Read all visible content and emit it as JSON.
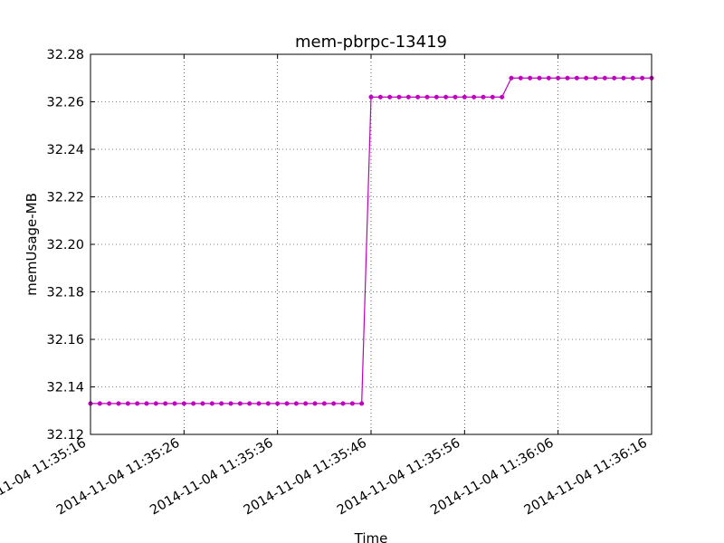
{
  "chart_data": {
    "type": "line",
    "title": "mem-pbrpc-13419",
    "xlabel": "Time",
    "ylabel": "memUsage-MB",
    "ylim": [
      32.12,
      32.28
    ],
    "xlim_seconds_from_first_tick": [
      0,
      60
    ],
    "x_tick_labels": [
      "2014-11-04 11:35:16",
      "2014-11-04 11:35:26",
      "2014-11-04 11:35:36",
      "2014-11-04 11:35:46",
      "2014-11-04 11:35:56",
      "2014-11-04 11:36:06",
      "2014-11-04 11:36:16"
    ],
    "y_tick_labels": [
      "32.12",
      "32.14",
      "32.16",
      "32.18",
      "32.20",
      "32.22",
      "32.24",
      "32.26",
      "32.28"
    ],
    "grid": true,
    "series": [
      {
        "color": "#bf00bf",
        "marker": "circle",
        "points": [
          [
            "2014-11-04 11:35:16",
            32.133
          ],
          [
            "2014-11-04 11:35:17",
            32.133
          ],
          [
            "2014-11-04 11:35:18",
            32.133
          ],
          [
            "2014-11-04 11:35:19",
            32.133
          ],
          [
            "2014-11-04 11:35:20",
            32.133
          ],
          [
            "2014-11-04 11:35:21",
            32.133
          ],
          [
            "2014-11-04 11:35:22",
            32.133
          ],
          [
            "2014-11-04 11:35:23",
            32.133
          ],
          [
            "2014-11-04 11:35:24",
            32.133
          ],
          [
            "2014-11-04 11:35:25",
            32.133
          ],
          [
            "2014-11-04 11:35:26",
            32.133
          ],
          [
            "2014-11-04 11:35:27",
            32.133
          ],
          [
            "2014-11-04 11:35:28",
            32.133
          ],
          [
            "2014-11-04 11:35:29",
            32.133
          ],
          [
            "2014-11-04 11:35:30",
            32.133
          ],
          [
            "2014-11-04 11:35:31",
            32.133
          ],
          [
            "2014-11-04 11:35:32",
            32.133
          ],
          [
            "2014-11-04 11:35:33",
            32.133
          ],
          [
            "2014-11-04 11:35:34",
            32.133
          ],
          [
            "2014-11-04 11:35:35",
            32.133
          ],
          [
            "2014-11-04 11:35:36",
            32.133
          ],
          [
            "2014-11-04 11:35:37",
            32.133
          ],
          [
            "2014-11-04 11:35:38",
            32.133
          ],
          [
            "2014-11-04 11:35:39",
            32.133
          ],
          [
            "2014-11-04 11:35:40",
            32.133
          ],
          [
            "2014-11-04 11:35:41",
            32.133
          ],
          [
            "2014-11-04 11:35:42",
            32.133
          ],
          [
            "2014-11-04 11:35:43",
            32.133
          ],
          [
            "2014-11-04 11:35:44",
            32.133
          ],
          [
            "2014-11-04 11:35:45",
            32.133
          ],
          [
            "2014-11-04 11:35:46",
            32.262
          ],
          [
            "2014-11-04 11:35:47",
            32.262
          ],
          [
            "2014-11-04 11:35:48",
            32.262
          ],
          [
            "2014-11-04 11:35:49",
            32.262
          ],
          [
            "2014-11-04 11:35:50",
            32.262
          ],
          [
            "2014-11-04 11:35:51",
            32.262
          ],
          [
            "2014-11-04 11:35:52",
            32.262
          ],
          [
            "2014-11-04 11:35:53",
            32.262
          ],
          [
            "2014-11-04 11:35:54",
            32.262
          ],
          [
            "2014-11-04 11:35:55",
            32.262
          ],
          [
            "2014-11-04 11:35:56",
            32.262
          ],
          [
            "2014-11-04 11:35:57",
            32.262
          ],
          [
            "2014-11-04 11:35:58",
            32.262
          ],
          [
            "2014-11-04 11:35:59",
            32.262
          ],
          [
            "2014-11-04 11:36:00",
            32.262
          ],
          [
            "2014-11-04 11:36:01",
            32.27
          ],
          [
            "2014-11-04 11:36:02",
            32.27
          ],
          [
            "2014-11-04 11:36:03",
            32.27
          ],
          [
            "2014-11-04 11:36:04",
            32.27
          ],
          [
            "2014-11-04 11:36:05",
            32.27
          ],
          [
            "2014-11-04 11:36:06",
            32.27
          ],
          [
            "2014-11-04 11:36:07",
            32.27
          ],
          [
            "2014-11-04 11:36:08",
            32.27
          ],
          [
            "2014-11-04 11:36:09",
            32.27
          ],
          [
            "2014-11-04 11:36:10",
            32.27
          ],
          [
            "2014-11-04 11:36:11",
            32.27
          ],
          [
            "2014-11-04 11:36:12",
            32.27
          ],
          [
            "2014-11-04 11:36:13",
            32.27
          ],
          [
            "2014-11-04 11:36:14",
            32.27
          ],
          [
            "2014-11-04 11:36:15",
            32.27
          ],
          [
            "2014-11-04 11:36:16",
            32.27
          ]
        ]
      }
    ]
  }
}
